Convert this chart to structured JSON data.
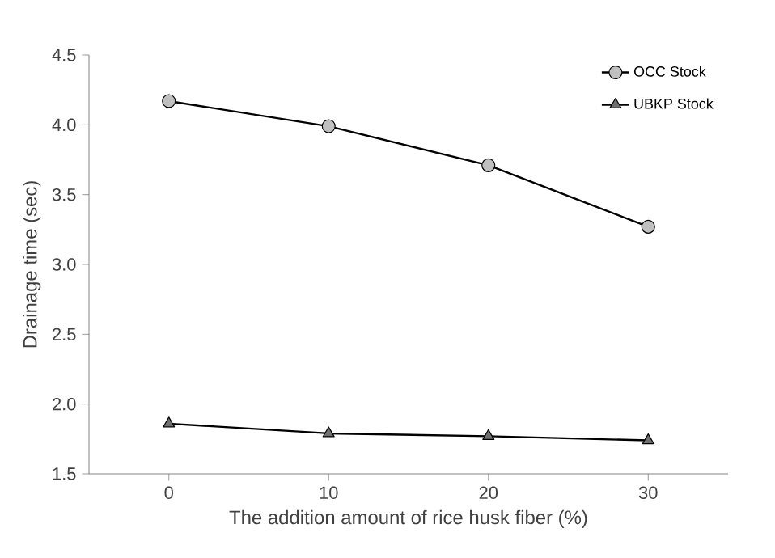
{
  "chart_data": {
    "type": "line",
    "xlabel": "The addition amount of rice husk fiber (%)",
    "ylabel": "Drainage time (sec)",
    "x": [
      0,
      10,
      20,
      30
    ],
    "xlim": [
      -5,
      35
    ],
    "xticks": [
      0,
      10,
      20,
      30
    ],
    "ylim": [
      1.5,
      4.5
    ],
    "yticks": [
      {
        "value": 1.5,
        "label": "1.5"
      },
      {
        "value": 2.0,
        "label": "2.0"
      },
      {
        "value": 2.5,
        "label": "2.5"
      },
      {
        "value": 3.0,
        "label": "3.0"
      },
      {
        "value": 3.5,
        "label": "3.5"
      },
      {
        "value": 4.0,
        "label": "4.0"
      },
      {
        "value": 4.5,
        "label": "4.5"
      }
    ],
    "grid": false,
    "legend": "top right",
    "line_style": "solid",
    "series": [
      {
        "name": "OCC Stock",
        "color": "#c0c0c0",
        "marker": "circle",
        "values": [
          4.17,
          3.99,
          3.71,
          3.27
        ]
      },
      {
        "name": "UBKP Stock",
        "color": "#707070",
        "marker": "triangle",
        "values": [
          1.86,
          1.79,
          1.77,
          1.74
        ]
      }
    ]
  }
}
